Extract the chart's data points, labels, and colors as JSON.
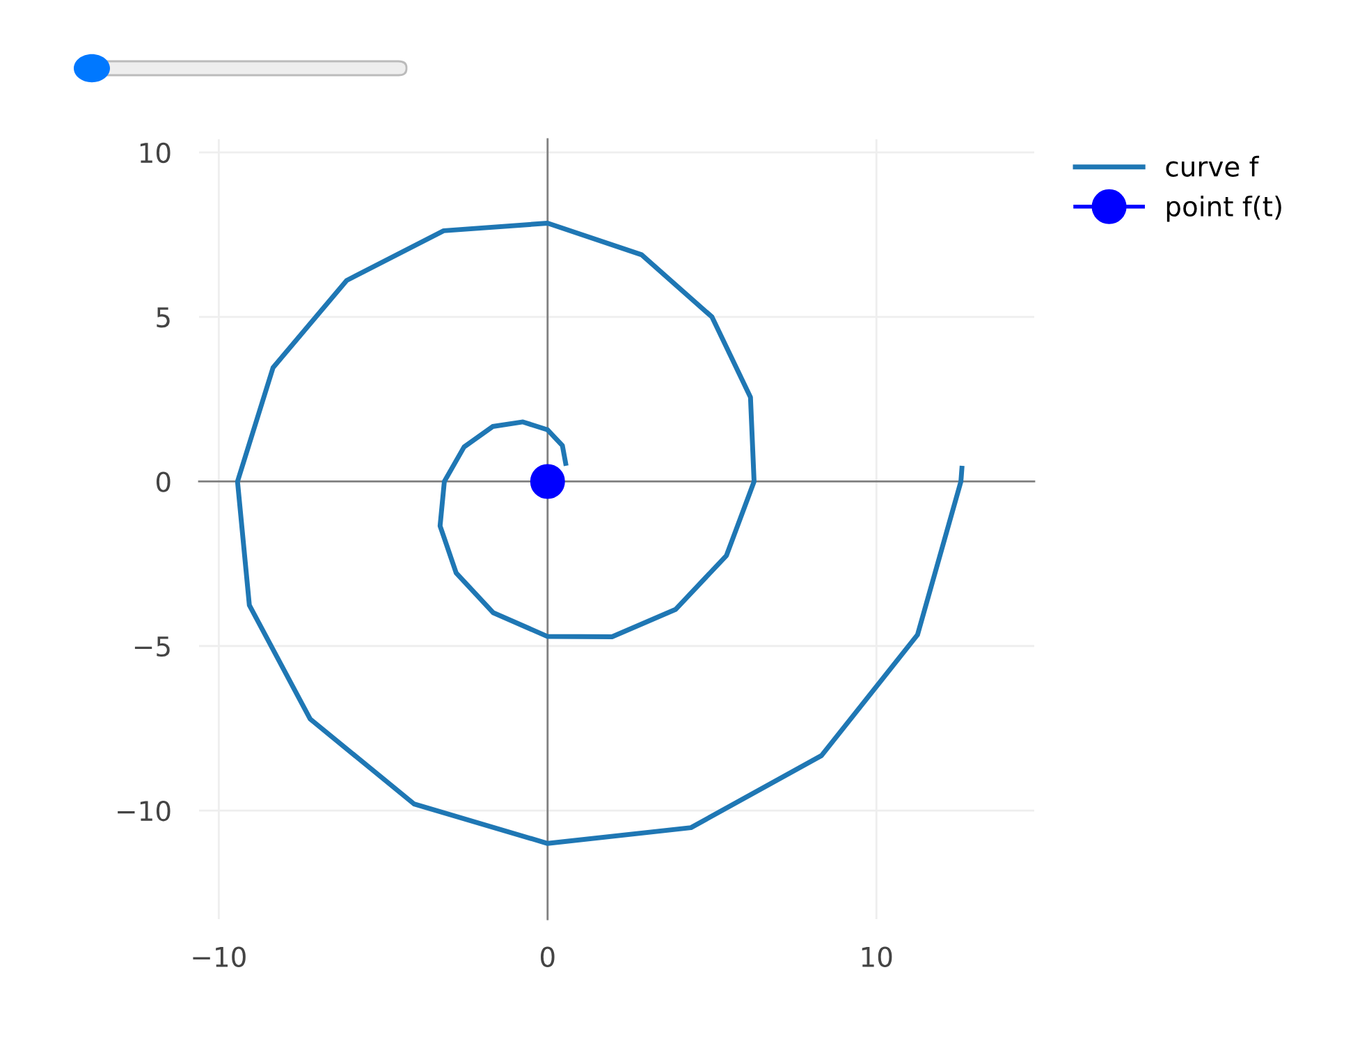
{
  "chart_data": {
    "type": "line",
    "series": [
      {
        "name": "curve f",
        "color": "#1f77b4",
        "x": [
          0.55,
          0.45,
          0,
          -0.75,
          -1.67,
          -2.54,
          -3.14,
          -3.27,
          -2.78,
          -1.65,
          0,
          1.96,
          3.89,
          5.44,
          6.28,
          6.17,
          5.0,
          2.86,
          0,
          -3.16,
          -6.11,
          -8.35,
          -9.43,
          -9.07,
          -7.22,
          -4.06,
          0,
          4.36,
          8.33,
          11.25,
          12.57,
          12.6
        ],
        "values": [
          0.55,
          1.09,
          1.57,
          1.81,
          1.67,
          1.05,
          0,
          -1.35,
          -2.78,
          -3.99,
          -4.71,
          -4.72,
          -3.89,
          -2.25,
          0,
          2.56,
          5.0,
          6.89,
          7.85,
          7.62,
          6.11,
          3.46,
          0,
          -3.76,
          -7.22,
          -9.8,
          -11.0,
          -10.52,
          -8.33,
          -4.66,
          0,
          0.4
        ],
        "marker": "none"
      },
      {
        "name": "point f(t)",
        "color": "#0000ff",
        "x": [
          0
        ],
        "values": [
          0
        ],
        "marker": "circle"
      }
    ],
    "xlim": [
      -10.6,
      14.8
    ],
    "ylim": [
      -13.3,
      10.4
    ],
    "xticks": [
      {
        "value": -10,
        "label": "−10"
      },
      0,
      10
    ],
    "yticks": [
      {
        "value": -10,
        "label": "−10"
      },
      {
        "value": -5,
        "label": "−5"
      },
      0,
      5,
      10
    ],
    "grid": true,
    "legend": "top right"
  }
}
